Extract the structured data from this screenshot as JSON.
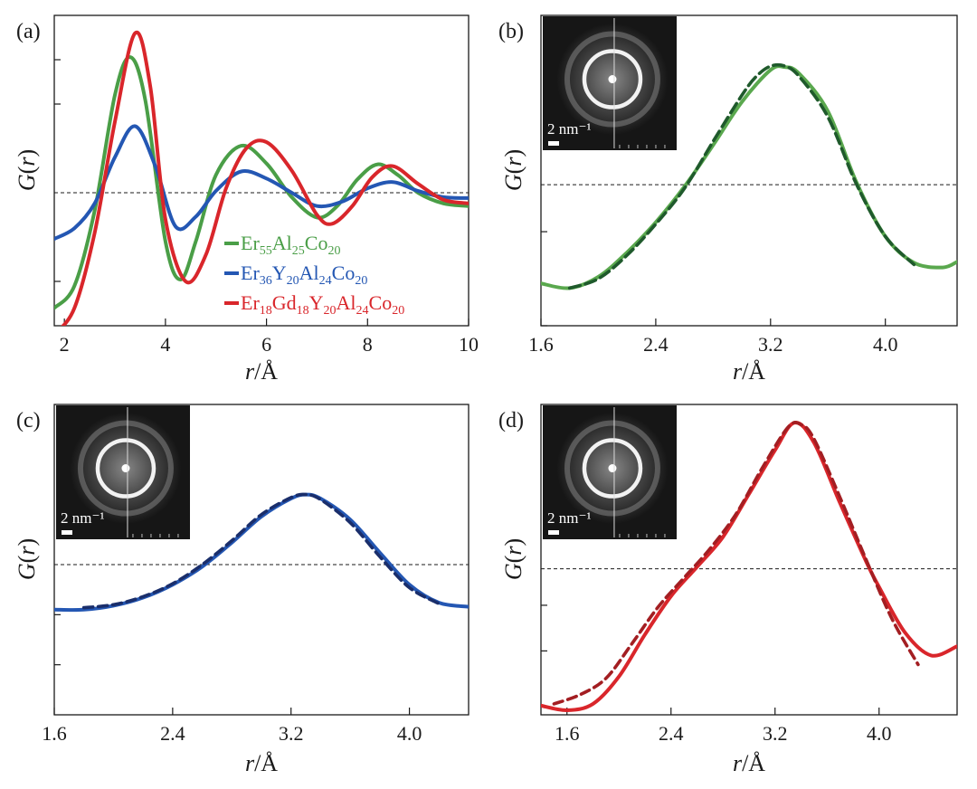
{
  "chart_data": [
    {
      "panel": "(a)",
      "type": "line",
      "xlabel_italic": "r",
      "xlabel_unit": "/Å",
      "ylabel_italic": "G",
      "ylabel_paren_open": "(",
      "ylabel_var": "r",
      "ylabel_paren_close": ")",
      "xlim": [
        1.8,
        10
      ],
      "ylim": [
        -1.5,
        2.0
      ],
      "x_ticks": [
        2,
        4,
        6,
        8,
        10
      ],
      "x_tick_labels": [
        "2",
        "4",
        "6",
        "8",
        "10"
      ],
      "y_minor_ticks": [
        -1.0,
        1.0,
        1.5
      ],
      "zero_line": 0,
      "series": [
        {
          "name": "Er55Al25Co20",
          "color": "#4a9e47",
          "legend_parts": [
            [
              "Er",
              ""
            ],
            [
              "55",
              "sub"
            ],
            [
              "Al",
              ""
            ],
            [
              "25",
              "sub"
            ],
            [
              "Co",
              ""
            ],
            [
              "20",
              "sub"
            ]
          ],
          "x": [
            1.8,
            2.2,
            2.6,
            3.0,
            3.3,
            3.6,
            4.0,
            4.3,
            4.6,
            5.0,
            5.5,
            6.0,
            6.5,
            7.0,
            7.4,
            7.8,
            8.2,
            8.6,
            9.0,
            9.5,
            10.0
          ],
          "y": [
            -1.3,
            -1.05,
            -0.2,
            1.1,
            1.53,
            1.05,
            -0.55,
            -0.98,
            -0.55,
            0.2,
            0.53,
            0.33,
            -0.05,
            -0.28,
            -0.15,
            0.15,
            0.32,
            0.2,
            0.0,
            -0.12,
            -0.15
          ]
        },
        {
          "name": "Er36Y20Al24Co20",
          "color": "#2457b3",
          "legend_parts": [
            [
              "Er",
              ""
            ],
            [
              "36",
              "sub"
            ],
            [
              "Y",
              ""
            ],
            [
              "20",
              "sub"
            ],
            [
              "Al",
              ""
            ],
            [
              "24",
              "sub"
            ],
            [
              "Co",
              ""
            ],
            [
              "20",
              "sub"
            ]
          ],
          "x": [
            1.8,
            2.2,
            2.6,
            3.0,
            3.4,
            3.8,
            4.2,
            4.6,
            5.0,
            5.5,
            6.0,
            6.5,
            7.0,
            7.5,
            8.0,
            8.5,
            9.0,
            9.5,
            10.0
          ],
          "y": [
            -0.52,
            -0.4,
            -0.12,
            0.4,
            0.75,
            0.3,
            -0.38,
            -0.27,
            0.02,
            0.24,
            0.16,
            0.0,
            -0.15,
            -0.1,
            0.05,
            0.12,
            0.02,
            -0.05,
            -0.06
          ]
        },
        {
          "name": "Er18Gd18Y20Al24Co20",
          "color": "#d9262b",
          "legend_parts": [
            [
              "Er",
              ""
            ],
            [
              "18",
              "sub"
            ],
            [
              "Gd",
              ""
            ],
            [
              "18",
              "sub"
            ],
            [
              "Y",
              ""
            ],
            [
              "20",
              "sub"
            ],
            [
              "Al",
              ""
            ],
            [
              "24",
              "sub"
            ],
            [
              "Co",
              ""
            ],
            [
              "20",
              "sub"
            ]
          ],
          "x": [
            1.8,
            2.2,
            2.6,
            3.0,
            3.4,
            3.7,
            4.0,
            4.4,
            4.8,
            5.2,
            5.6,
            6.0,
            6.5,
            7.0,
            7.3,
            7.7,
            8.1,
            8.5,
            9.0,
            9.5,
            10.0
          ],
          "y": [
            -1.6,
            -1.3,
            -0.45,
            0.8,
            1.8,
            1.2,
            -0.3,
            -1.0,
            -0.7,
            0.05,
            0.5,
            0.57,
            0.25,
            -0.25,
            -0.35,
            -0.15,
            0.18,
            0.3,
            0.1,
            -0.08,
            -0.12
          ]
        }
      ]
    },
    {
      "panel": "(b)",
      "type": "line",
      "xlabel_italic": "r",
      "xlabel_unit": "/Å",
      "ylabel_italic": "G",
      "ylabel_paren_open": "(",
      "ylabel_var": "r",
      "ylabel_paren_close": ")",
      "xlim": [
        1.6,
        4.5
      ],
      "ylim": [
        -1.5,
        1.8
      ],
      "x_ticks": [
        1.6,
        2.4,
        3.2,
        4.0
      ],
      "x_tick_labels": [
        "1.6",
        "2.4",
        "3.2",
        "4.0"
      ],
      "y_minor_ticks": [
        -1.5,
        -0.5
      ],
      "zero_line": 0,
      "series": [
        {
          "name": "G(r) solid",
          "color": "#5aa84e",
          "dash": "",
          "x": [
            1.6,
            1.8,
            2.0,
            2.2,
            2.4,
            2.6,
            2.8,
            3.0,
            3.2,
            3.3,
            3.4,
            3.6,
            3.8,
            4.0,
            4.2,
            4.4,
            4.5
          ],
          "y": [
            -1.05,
            -1.1,
            -0.98,
            -0.72,
            -0.4,
            -0.02,
            0.42,
            0.88,
            1.22,
            1.25,
            1.18,
            0.78,
            0.02,
            -0.55,
            -0.83,
            -0.88,
            -0.82
          ]
        },
        {
          "name": "G(r) dashed",
          "color": "#1f5a2c",
          "dash": "12 6",
          "x": [
            1.8,
            2.0,
            2.2,
            2.4,
            2.6,
            2.8,
            3.0,
            3.1,
            3.2,
            3.3,
            3.4,
            3.6,
            3.8,
            4.0,
            4.2
          ],
          "y": [
            -1.1,
            -1.0,
            -0.75,
            -0.42,
            -0.04,
            0.46,
            0.95,
            1.15,
            1.26,
            1.26,
            1.15,
            0.72,
            0.0,
            -0.55,
            -0.85
          ]
        }
      ],
      "inset": {
        "scale_label": "2 nm⁻¹"
      }
    },
    {
      "panel": "(c)",
      "type": "line",
      "xlabel_italic": "r",
      "xlabel_unit": "/Å",
      "ylabel_italic": "G",
      "ylabel_paren_open": "(",
      "ylabel_var": "r",
      "ylabel_paren_close": ")",
      "xlim": [
        1.6,
        4.4
      ],
      "ylim": [
        -1.5,
        1.6
      ],
      "x_ticks": [
        1.6,
        2.4,
        3.2,
        4.0
      ],
      "x_tick_labels": [
        "1.6",
        "2.4",
        "3.2",
        "4.0"
      ],
      "y_minor_ticks": [
        -1.0,
        -0.5
      ],
      "zero_line": 0,
      "series": [
        {
          "name": "G(r) solid",
          "color": "#2457b3",
          "dash": "",
          "x": [
            1.6,
            1.8,
            2.0,
            2.2,
            2.4,
            2.6,
            2.8,
            3.0,
            3.2,
            3.3,
            3.4,
            3.6,
            3.8,
            4.0,
            4.2,
            4.4
          ],
          "y": [
            -0.45,
            -0.45,
            -0.41,
            -0.33,
            -0.2,
            -0.02,
            0.22,
            0.48,
            0.66,
            0.7,
            0.66,
            0.45,
            0.12,
            -0.2,
            -0.38,
            -0.42
          ]
        },
        {
          "name": "G(r) dashed",
          "color": "#1a2e6b",
          "dash": "10 6",
          "x": [
            1.8,
            2.0,
            2.2,
            2.4,
            2.6,
            2.8,
            3.0,
            3.2,
            3.3,
            3.4,
            3.6,
            3.8,
            4.0,
            4.2
          ],
          "y": [
            -0.43,
            -0.4,
            -0.32,
            -0.19,
            0.0,
            0.24,
            0.5,
            0.67,
            0.7,
            0.65,
            0.42,
            0.08,
            -0.23,
            -0.39
          ]
        }
      ],
      "inset": {
        "scale_label": "2 nm⁻¹"
      }
    },
    {
      "panel": "(d)",
      "type": "line",
      "xlabel_italic": "r",
      "xlabel_unit": "/Å",
      "ylabel_italic": "G",
      "ylabel_paren_open": "(",
      "ylabel_var": "r",
      "ylabel_paren_close": ")",
      "xlim": [
        1.4,
        4.6
      ],
      "ylim": [
        -1.6,
        1.8
      ],
      "x_ticks": [
        1.6,
        2.4,
        3.2,
        4.0
      ],
      "x_tick_labels": [
        "1.6",
        "2.4",
        "3.2",
        "4.0"
      ],
      "y_minor_ticks": [
        -0.9,
        -0.4
      ],
      "zero_line": 0,
      "series": [
        {
          "name": "G(r) solid",
          "color": "#d9262b",
          "dash": "",
          "x": [
            1.4,
            1.6,
            1.8,
            2.0,
            2.2,
            2.4,
            2.6,
            2.8,
            3.0,
            3.2,
            3.35,
            3.5,
            3.7,
            3.9,
            4.0,
            4.2,
            4.4,
            4.6
          ],
          "y": [
            -1.5,
            -1.55,
            -1.48,
            -1.18,
            -0.72,
            -0.3,
            0.02,
            0.35,
            0.82,
            1.3,
            1.6,
            1.38,
            0.72,
            0.08,
            -0.2,
            -0.7,
            -0.95,
            -0.85
          ]
        },
        {
          "name": "G(r) dashed",
          "color": "#a31e22",
          "dash": "10 6",
          "x": [
            1.5,
            1.7,
            1.9,
            2.1,
            2.3,
            2.5,
            2.7,
            2.9,
            3.1,
            3.3,
            3.4,
            3.5,
            3.7,
            3.9,
            4.1,
            4.3
          ],
          "y": [
            -1.48,
            -1.38,
            -1.2,
            -0.82,
            -0.42,
            -0.1,
            0.22,
            0.6,
            1.1,
            1.55,
            1.58,
            1.42,
            0.78,
            0.1,
            -0.55,
            -1.05
          ]
        }
      ],
      "inset": {
        "scale_label": "2 nm⁻¹"
      }
    }
  ]
}
